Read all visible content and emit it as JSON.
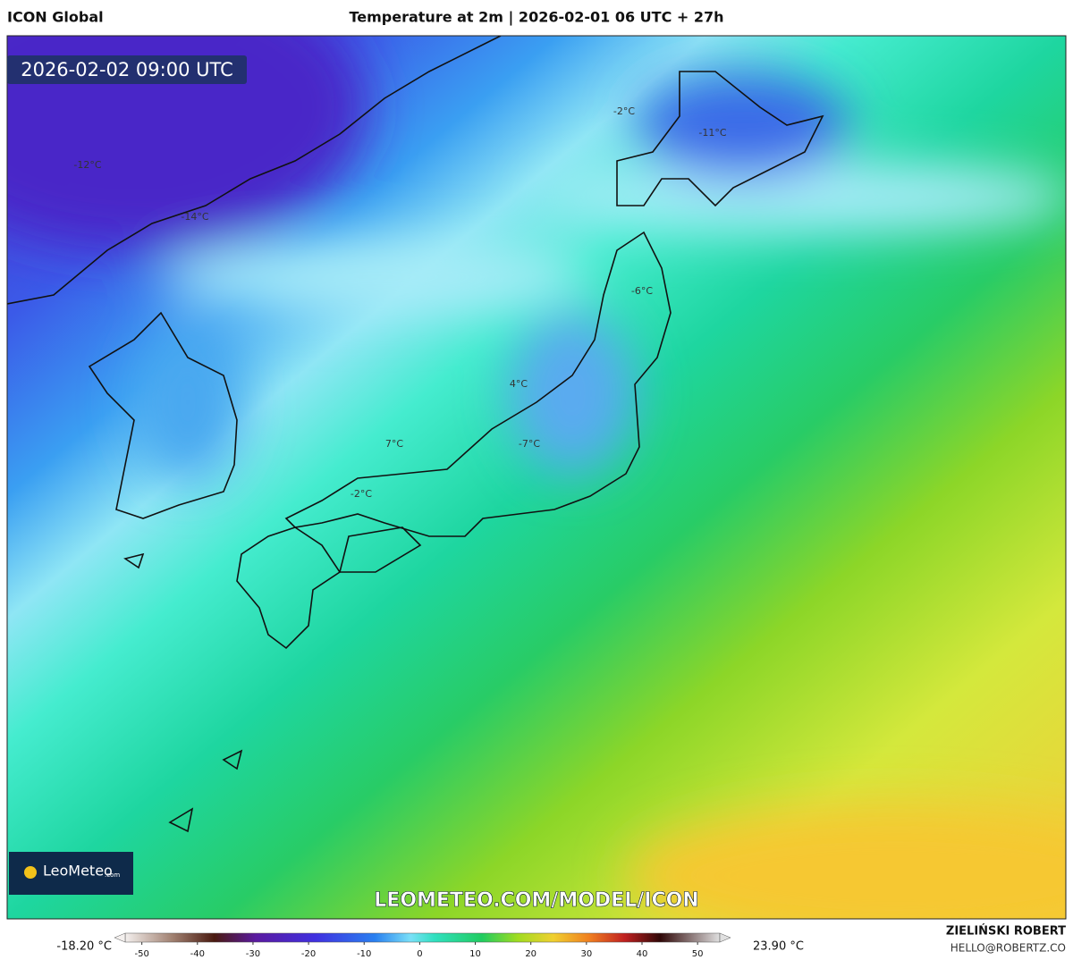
{
  "header": {
    "model": "ICON Global",
    "title": "Temperature at 2m | 2026-02-01 06 UTC + 27h"
  },
  "map": {
    "valid_time": "2026-02-02 09:00 UTC",
    "watermark": "LEOMETEO.COM/MODEL/ICON",
    "logo": "LeoMeteo",
    "logo_suffix": ".com",
    "labels": [
      "-2°C",
      "-11°C",
      "-12°C",
      "-14°C",
      "-6°C",
      "4°C",
      "7°C",
      "-7°C",
      "-2°C"
    ]
  },
  "legend": {
    "min_label": "-18.20 °C",
    "max_label": "23.90 °C",
    "lim": [
      -53,
      54
    ],
    "ticks": [
      -50,
      -40,
      -30,
      -20,
      -10,
      0,
      10,
      20,
      30,
      40,
      50
    ]
  },
  "footer": {
    "author": "ZIELIŃSKI ROBERT",
    "email": "HELLO@ROBERTZ.CO"
  }
}
